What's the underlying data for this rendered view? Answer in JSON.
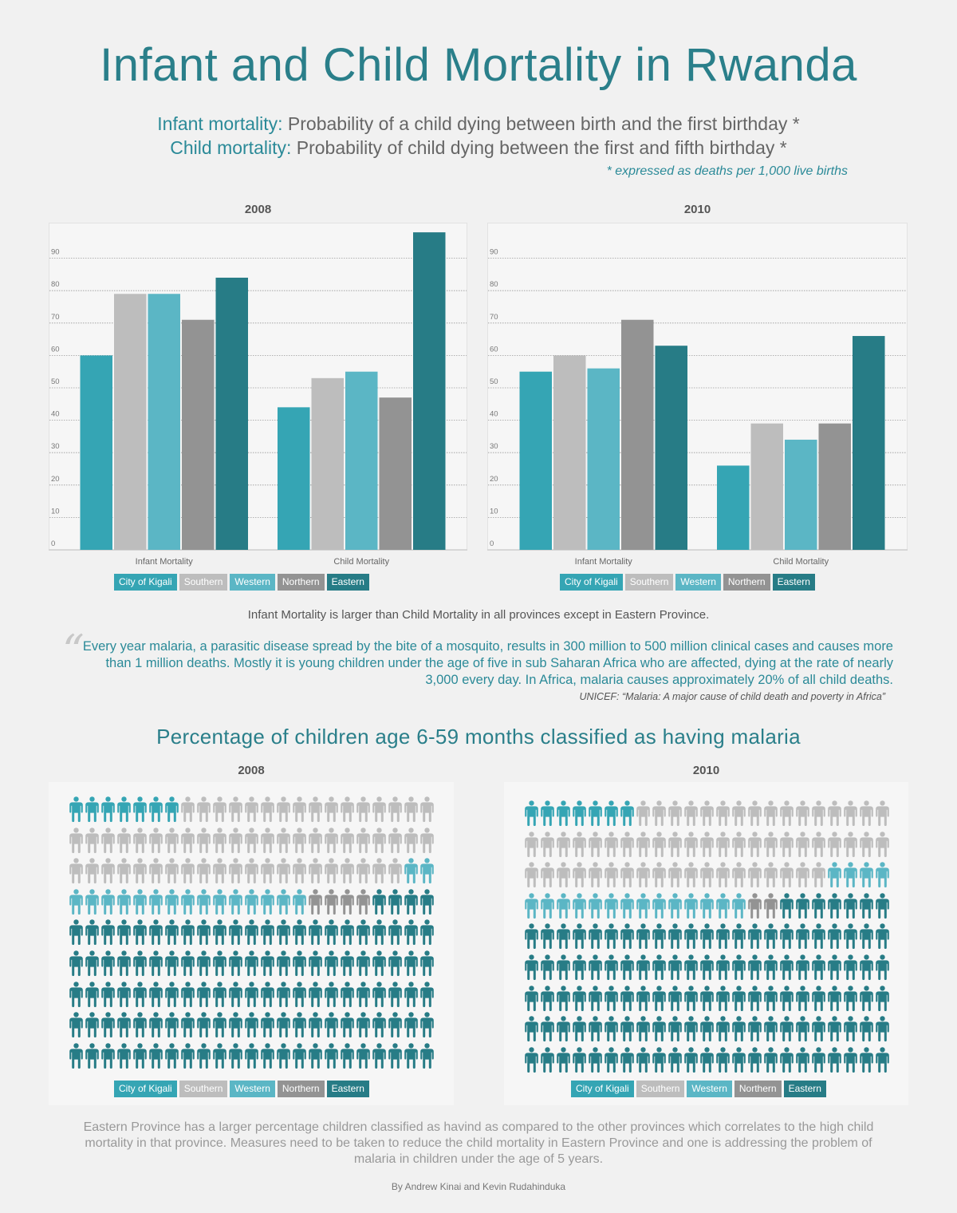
{
  "title": "Infant and Child Mortality in Rwanda",
  "definitions": [
    {
      "term": "Infant mortality:",
      "text": " Probability of a child dying between birth and the first birthday *"
    },
    {
      "term": "Child mortality:",
      "text": " Probability of child dying between the first and fifth birthday *"
    }
  ],
  "note": "* expressed as deaths per 1,000 live births",
  "colors": {
    "City of Kigali": "#35a5b4",
    "Southern": "#bdbdbd",
    "Western": "#5bb6c5",
    "Northern": "#939393",
    "Eastern": "#277c86"
  },
  "legend": [
    "City of Kigali",
    "Southern",
    "Western",
    "Northern",
    "Eastern"
  ],
  "chart_data": [
    {
      "type": "bar",
      "title": "2008",
      "categories": [
        "Infant Mortality",
        "Child Mortality"
      ],
      "series": [
        {
          "name": "City of Kigali",
          "values": [
            60,
            44
          ]
        },
        {
          "name": "Southern",
          "values": [
            79,
            53
          ]
        },
        {
          "name": "Western",
          "values": [
            79,
            55
          ]
        },
        {
          "name": "Northern",
          "values": [
            71,
            47
          ]
        },
        {
          "name": "Eastern",
          "values": [
            84,
            98
          ]
        }
      ],
      "ylim": [
        0,
        100
      ],
      "yticks": [
        0,
        10,
        20,
        30,
        40,
        50,
        60,
        70,
        80,
        90
      ],
      "grid": true,
      "legend_position": "bottom"
    },
    {
      "type": "bar",
      "title": "2010",
      "categories": [
        "Infant Mortality",
        "Child Mortality"
      ],
      "series": [
        {
          "name": "City of Kigali",
          "values": [
            55,
            26
          ]
        },
        {
          "name": "Southern",
          "values": [
            60,
            39
          ]
        },
        {
          "name": "Western",
          "values": [
            56,
            34
          ]
        },
        {
          "name": "Northern",
          "values": [
            71,
            39
          ]
        },
        {
          "name": "Eastern",
          "values": [
            63,
            66
          ]
        }
      ],
      "ylim": [
        0,
        100
      ],
      "yticks": [
        0,
        10,
        20,
        30,
        40,
        50,
        60,
        70,
        80,
        90
      ],
      "grid": true,
      "legend_position": "bottom"
    }
  ],
  "insight1": "Infant Mortality is larger than Child Mortality in all provinces except in Eastern Province.",
  "quote": {
    "mark": "“",
    "text": "Every year malaria, a parasitic disease spread by the bite of a mosquito, results in 300 million to 500 million clinical cases and causes more than 1 million deaths. Mostly it is young children under the age of five in sub Saharan Africa who are affected, dying at the rate of nearly 3,000 every day. In Africa, malaria causes approximately 20% of all child deaths.",
    "source": "UNICEF: “Malaria: A major cause of child death and poverty in Africa”"
  },
  "malaria": {
    "title": "Percentage of children age 6-59 months classified as having malaria",
    "panels": [
      {
        "year": "2008",
        "counts": [
          {
            "name": "City of Kigali",
            "count": 7
          },
          {
            "name": "Southern",
            "count": 60
          },
          {
            "name": "Western",
            "count": 17
          },
          {
            "name": "Northern",
            "count": 4
          },
          {
            "name": "Eastern",
            "count": 119
          }
        ]
      },
      {
        "year": "2010",
        "counts": [
          {
            "name": "City of Kigali",
            "count": 7
          },
          {
            "name": "Southern",
            "count": 58
          },
          {
            "name": "Western",
            "count": 18
          },
          {
            "name": "Northern",
            "count": 2
          },
          {
            "name": "Eastern",
            "count": 122
          }
        ]
      }
    ]
  },
  "insight2": "Eastern Province has a larger percentage children classified as havind as compared to the other provinces  which correlates to the high child mortality in that province. Measures need to be taken to reduce the child mortality in Eastern Province and one is addressing the problem of malaria in children under the age of 5 years.",
  "credit": "By Andrew Kinai and Kevin Rudahinduka"
}
